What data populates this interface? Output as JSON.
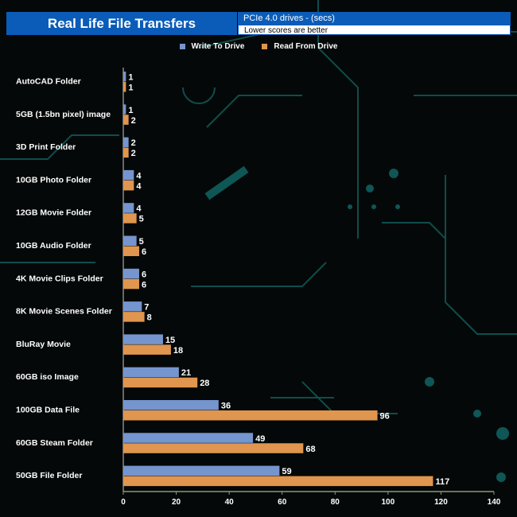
{
  "chart_data": {
    "type": "bar",
    "orientation": "horizontal",
    "title": "Real Life File Transfers",
    "subtitle": "PCIe 4.0 drives - (secs)",
    "note": "Lower scores are better",
    "categories": [
      "AutoCAD Folder",
      "5GB (1.5bn pixel) image",
      "3D Print Folder",
      "10GB Photo Folder",
      "12GB Movie Folder",
      "10GB Audio Folder",
      "4K Movie Clips Folder",
      "8K Movie Scenes Folder",
      "BluRay Movie",
      "60GB iso Image",
      "100GB Data File",
      "60GB Steam Folder",
      "50GB File Folder"
    ],
    "series": [
      {
        "name": "Write To  Drive",
        "color": "#7595cf",
        "values": [
          1,
          1,
          2,
          4,
          4,
          5,
          6,
          7,
          15,
          21,
          36,
          49,
          59
        ]
      },
      {
        "name": "Read From  Drive",
        "color": "#e0964e",
        "values": [
          1,
          2,
          2,
          4,
          5,
          6,
          6,
          8,
          18,
          28,
          96,
          68,
          117
        ]
      }
    ],
    "xlim": [
      0,
      140
    ],
    "xticks": [
      0,
      20,
      40,
      60,
      80,
      100,
      120,
      140
    ],
    "legend": "top-center",
    "grid": false
  }
}
